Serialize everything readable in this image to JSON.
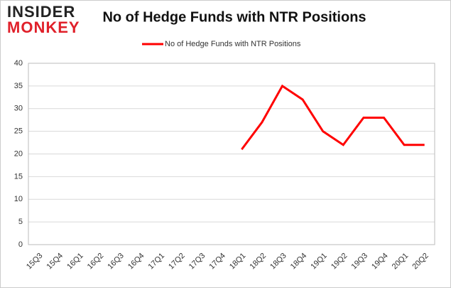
{
  "logo": {
    "top": "INSIDER",
    "bottom": "MONKEY"
  },
  "chart_data": {
    "type": "line",
    "title": "No of Hedge Funds with NTR Positions",
    "categories": [
      "15Q3",
      "15Q4",
      "16Q1",
      "16Q2",
      "16Q3",
      "16Q4",
      "17Q1",
      "17Q2",
      "17Q3",
      "17Q4",
      "18Q1",
      "18Q2",
      "18Q3",
      "18Q4",
      "19Q1",
      "19Q2",
      "19Q3",
      "19Q4",
      "20Q1",
      "20Q2"
    ],
    "series": [
      {
        "name": "No of Hedge Funds with NTR Positions",
        "color": "#ff0000",
        "values": [
          null,
          null,
          null,
          null,
          null,
          null,
          null,
          null,
          null,
          null,
          21,
          27,
          35,
          32,
          25,
          22,
          28,
          28,
          22,
          22
        ]
      }
    ],
    "ylim": [
      0,
      40
    ],
    "yticks": [
      0,
      5,
      10,
      15,
      20,
      25,
      30,
      35,
      40
    ],
    "grid": true,
    "legend": "top"
  }
}
